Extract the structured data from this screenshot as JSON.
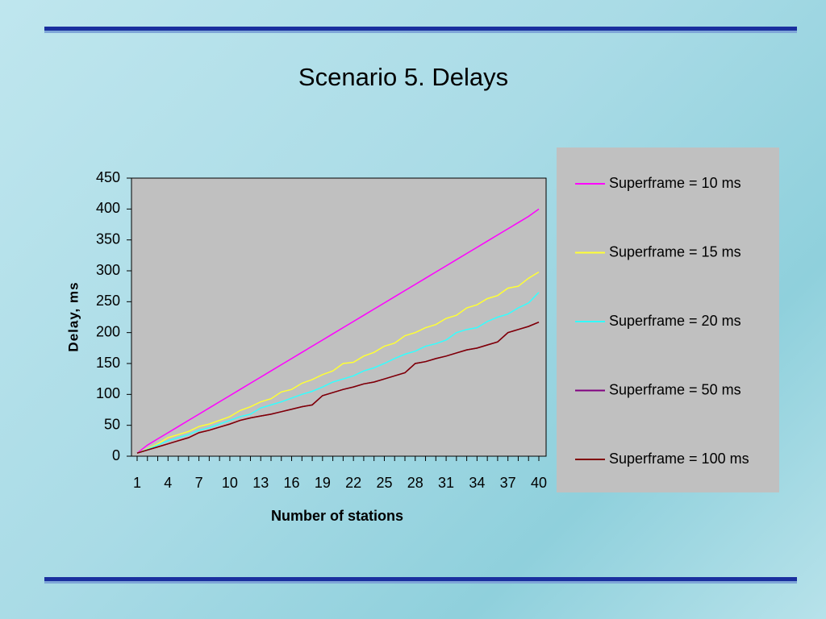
{
  "chart_data": {
    "type": "line",
    "title": "Scenario 5. Delays",
    "x_label": "Number of stations",
    "y_label": "Delay, ms",
    "categories": [
      1,
      null,
      null,
      4,
      null,
      null,
      7,
      null,
      null,
      10,
      null,
      null,
      13,
      null,
      null,
      16,
      null,
      null,
      19,
      null,
      null,
      22,
      null,
      null,
      25,
      null,
      null,
      28,
      null,
      null,
      31,
      null,
      null,
      34,
      null,
      null,
      37,
      null,
      null,
      40
    ],
    "series": [
      {
        "name": "Superframe = 10 ms",
        "color": "#ff00ff",
        "values": [
          5,
          18,
          28,
          38,
          48,
          58,
          68,
          78,
          88,
          98,
          108,
          118,
          128,
          138,
          148,
          158,
          168,
          178,
          188,
          198,
          208,
          218,
          228,
          238,
          248,
          258,
          268,
          278,
          288,
          298,
          308,
          318,
          328,
          338,
          348,
          358,
          368,
          378,
          388,
          400
        ]
      },
      {
        "name": "Superframe = 15 ms",
        "color": "#ffff33",
        "values": [
          5,
          12,
          20,
          30,
          35,
          40,
          48,
          52,
          58,
          64,
          74,
          80,
          88,
          93,
          104,
          108,
          118,
          124,
          132,
          138,
          150,
          152,
          162,
          168,
          178,
          183,
          195,
          200,
          208,
          213,
          223,
          228,
          240,
          245,
          255,
          260,
          272,
          275,
          288,
          298
        ]
      },
      {
        "name": "Superframe = 20 ms",
        "color": "#33ffff",
        "values": [
          5,
          11,
          18,
          25,
          30,
          35,
          42,
          46,
          52,
          58,
          64,
          68,
          78,
          83,
          88,
          94,
          100,
          105,
          112,
          120,
          125,
          130,
          138,
          143,
          150,
          158,
          165,
          170,
          178,
          182,
          188,
          200,
          205,
          208,
          218,
          225,
          230,
          240,
          248,
          265
        ]
      },
      {
        "name": "Superframe = 50 ms",
        "color": "#800080",
        "values": [
          5,
          10,
          15,
          20,
          25,
          30,
          38,
          42,
          47,
          52,
          58,
          62,
          65,
          68,
          72,
          76,
          80,
          83,
          98,
          103,
          108,
          112,
          117,
          120,
          125,
          130,
          135,
          150,
          153,
          158,
          162,
          167,
          172,
          175,
          180,
          185,
          200,
          205,
          210,
          217
        ]
      },
      {
        "name": "Superframe = 100 ms",
        "color": "#800000",
        "values": [
          5,
          10,
          15,
          20,
          25,
          30,
          38,
          42,
          47,
          52,
          58,
          62,
          65,
          68,
          72,
          76,
          80,
          83,
          98,
          103,
          108,
          112,
          117,
          120,
          125,
          130,
          135,
          150,
          153,
          158,
          162,
          167,
          172,
          175,
          180,
          185,
          200,
          205,
          210,
          217
        ]
      }
    ],
    "ylim": [
      0,
      450
    ],
    "yticks": [
      0,
      50,
      100,
      150,
      200,
      250,
      300,
      350,
      400,
      450
    ],
    "legend": "right"
  }
}
